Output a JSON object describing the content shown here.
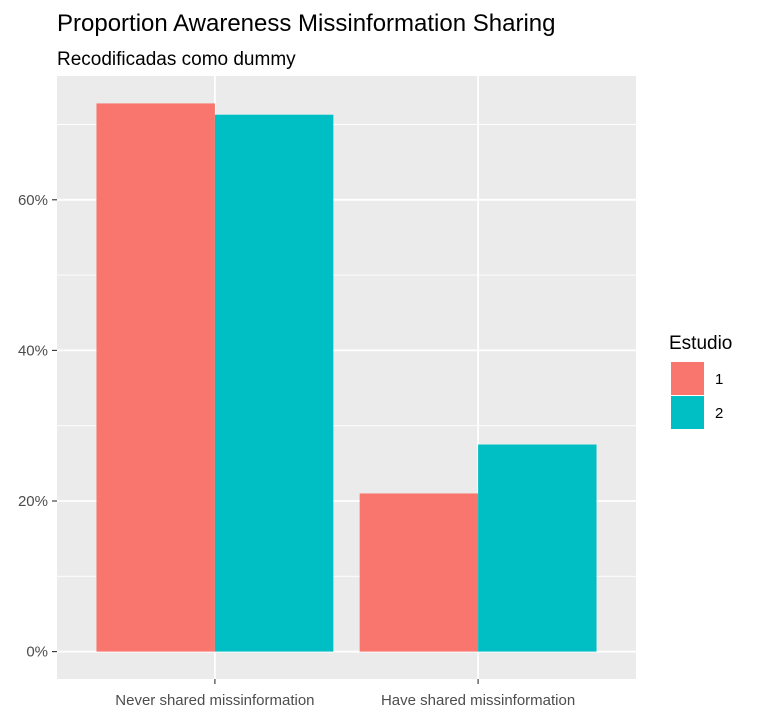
{
  "chart_data": {
    "type": "bar",
    "title": "Proportion Awareness Missinformation Sharing",
    "subtitle": "Recodificadas como dummy",
    "xlabel": "",
    "ylabel": "",
    "categories": [
      "Never shared missinformation",
      "Have shared missinformation"
    ],
    "series": [
      {
        "name": "1",
        "values": [
          0.728,
          0.21
        ],
        "color": "#F8766D"
      },
      {
        "name": "2",
        "values": [
          0.713,
          0.275
        ],
        "color": "#00BFC4"
      }
    ],
    "ylim": [
      -0.0364,
      0.7644
    ],
    "yticks": [
      0,
      0.2,
      0.4,
      0.6
    ],
    "ytick_labels": [
      "0%",
      "20%",
      "40%",
      "60%"
    ],
    "legend": {
      "title": "Estudio",
      "position": "right"
    },
    "grid": true,
    "panel_color": "#EBEBEB",
    "grid_color": "#FFFFFF"
  }
}
